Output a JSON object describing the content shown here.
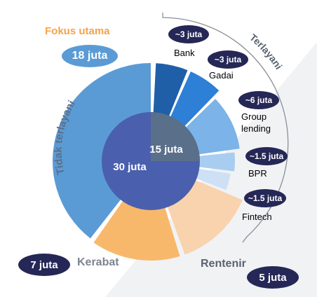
{
  "title": "Fokus utama",
  "colors": {
    "dark_navy": "#252756",
    "orange_title": "#f4a348",
    "untouched": "#5b9bd5",
    "core_dark": "#4a5fae",
    "core_grey": "#5a6f8a",
    "grey_text": "#7d8590"
  },
  "center": {
    "unserved_value": "30 juta",
    "served_value": "15 juta"
  },
  "unserved": {
    "arc_label": "Tidak terlayani",
    "total_label": "18 juta",
    "kerabat": {
      "label": "Kerabat",
      "value": "7 juta"
    },
    "rentenir": {
      "label": "Rentenir",
      "value": "5 juta"
    }
  },
  "served": {
    "arc_label": "Terlayani",
    "segments": [
      {
        "name": "Bank",
        "value": "~3 juta"
      },
      {
        "name": "Gadai",
        "value": "~3 juta"
      },
      {
        "name": "Group lending",
        "value": "~6 juta"
      },
      {
        "name": "BPR",
        "value": "~1.5 juta"
      },
      {
        "name": "Fintech",
        "value": "~1.5 juta"
      }
    ]
  }
}
